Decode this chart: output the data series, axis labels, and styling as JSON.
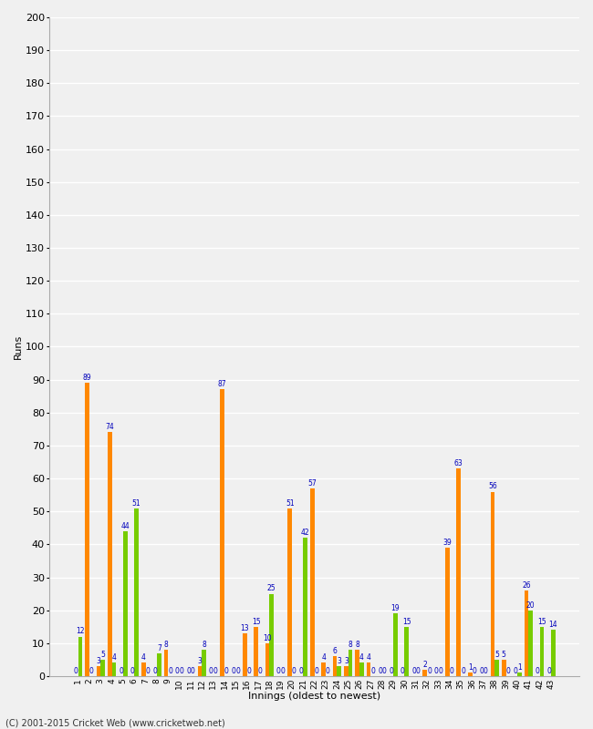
{
  "title": "",
  "xlabel": "Innings (oldest to newest)",
  "ylabel": "Runs",
  "background_color": "#f0f0f0",
  "bar_color_orange": "#ff8800",
  "bar_color_green": "#77cc00",
  "label_color": "#0000bb",
  "ylim": [
    0,
    200
  ],
  "innings": [
    1,
    2,
    3,
    4,
    5,
    6,
    7,
    8,
    9,
    10,
    11,
    12,
    13,
    14,
    15,
    16,
    17,
    18,
    19,
    20,
    21,
    22,
    23,
    24,
    25,
    26,
    27,
    28,
    29,
    30,
    31,
    32,
    33,
    34,
    35,
    36,
    37,
    38,
    39,
    40,
    41,
    42,
    43
  ],
  "orange": [
    0,
    89,
    3,
    74,
    0,
    0,
    4,
    0,
    8,
    0,
    0,
    3,
    0,
    87,
    0,
    13,
    15,
    10,
    0,
    51,
    0,
    57,
    4,
    6,
    3,
    8,
    4,
    0,
    0,
    0,
    0,
    2,
    0,
    39,
    63,
    1,
    0,
    56,
    5,
    0,
    26,
    0,
    0
  ],
  "green": [
    12,
    0,
    5,
    4,
    44,
    51,
    0,
    7,
    0,
    0,
    0,
    8,
    0,
    0,
    0,
    0,
    0,
    25,
    0,
    0,
    42,
    0,
    0,
    3,
    8,
    4,
    0,
    0,
    19,
    15,
    0,
    0,
    0,
    0,
    0,
    0,
    0,
    5,
    0,
    1,
    20,
    15,
    14
  ],
  "footer": "(C) 2001-2015 Cricket Web (www.cricketweb.net)"
}
